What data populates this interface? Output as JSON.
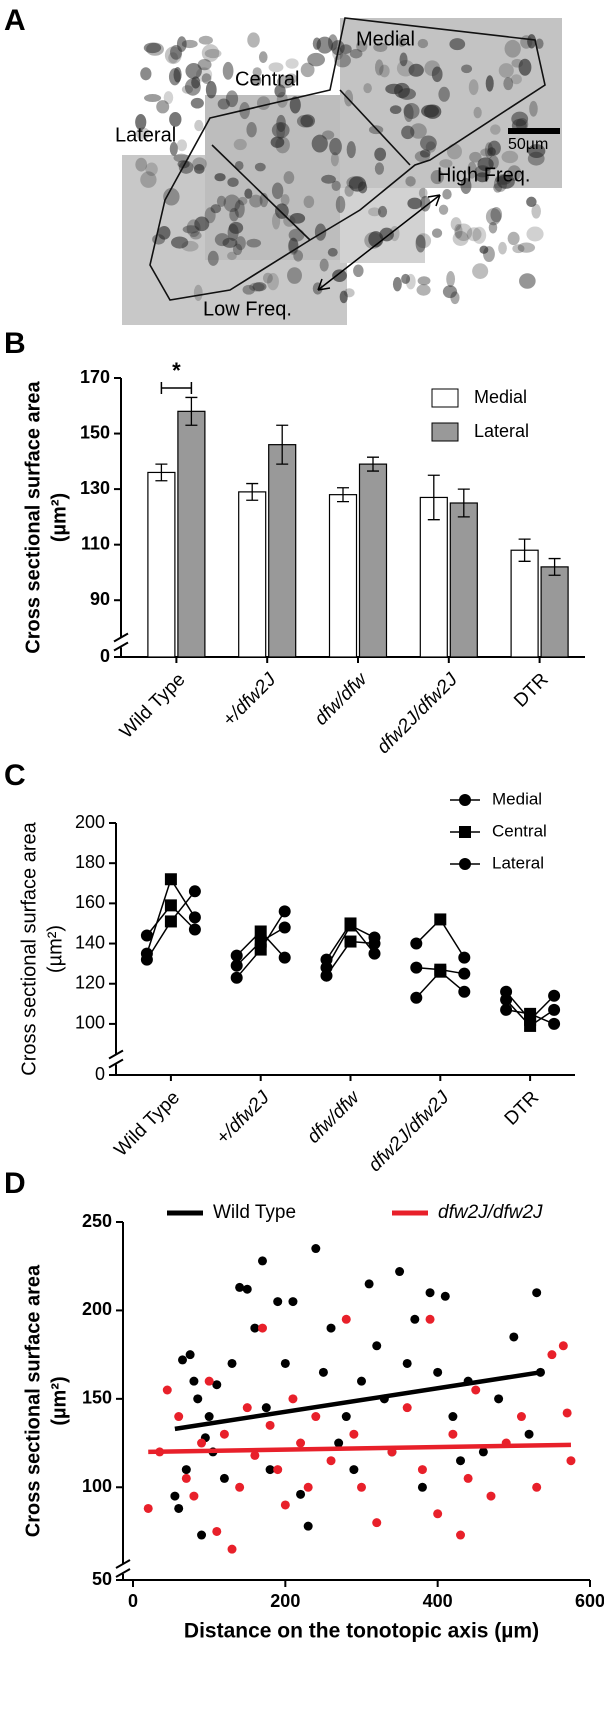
{
  "figure_a": {
    "label": "A",
    "regions": [
      "Medial",
      "Central",
      "Lateral"
    ],
    "scale_bar": "50µm",
    "arrow_labels": [
      "High Freq.",
      "Low Freq."
    ]
  },
  "chart_data": [
    {
      "type": "bar",
      "panel_label": "B",
      "ylabel": [
        "Cross sectional surface area",
        "(µm²)"
      ],
      "categories": [
        "Wild Type",
        "+/dfw2J",
        "dfw/dfw",
        "dfw2J/dfw2J",
        "DTR"
      ],
      "series": [
        {
          "name": "Medial",
          "color": "#ffffff",
          "values": [
            136,
            129,
            128,
            127,
            108
          ],
          "errors": [
            3,
            3,
            2.5,
            8,
            4
          ]
        },
        {
          "name": "Lateral",
          "color": "#999999",
          "values": [
            158,
            146,
            139,
            125,
            102
          ],
          "errors": [
            5,
            7,
            2.5,
            5,
            3
          ]
        }
      ],
      "ylim": [
        0,
        170
      ],
      "axis_break": [
        0,
        80
      ],
      "yticks": [
        0,
        90,
        110,
        130,
        150,
        170
      ],
      "annotations": [
        {
          "text": "*",
          "category": 0
        }
      ]
    },
    {
      "type": "paired",
      "panel_label": "C",
      "ylabel": [
        "Cross sectional surface area",
        "(µm²)"
      ],
      "categories": [
        "Wild Type",
        "+/dfw2J",
        "dfw/dfw",
        "dfw2J/dfw2J",
        "DTR"
      ],
      "series": [
        {
          "name": "Medial",
          "marker": "circle",
          "values": [
            [
              144,
              135,
              132
            ],
            [
              123,
              129,
              134
            ],
            [
              132,
              128,
              124
            ],
            [
              140,
              128,
              113
            ],
            [
              116,
              112,
              107
            ]
          ]
        },
        {
          "name": "Central",
          "marker": "square",
          "values": [
            [
              159,
              172,
              151
            ],
            [
              137,
              141,
              146
            ],
            [
              150,
              149,
              141
            ],
            [
              152,
              127,
              126
            ],
            [
              102,
              99,
              105
            ]
          ]
        },
        {
          "name": "Lateral",
          "marker": "circle",
          "values": [
            [
              147,
              153,
              166
            ],
            [
              156,
              148,
              133
            ],
            [
              135,
              143,
              140
            ],
            [
              133,
              125,
              116
            ],
            [
              114,
              107,
              100
            ]
          ]
        }
      ],
      "ylim": [
        0,
        200
      ],
      "axis_break": [
        0,
        90
      ],
      "yticks": [
        0,
        100,
        120,
        140,
        160,
        180,
        200
      ]
    },
    {
      "type": "scatter",
      "panel_label": "D",
      "ylabel": [
        "Cross sectional surface area",
        "(µm²)"
      ],
      "xlabel": "Distance on the tonotopic axis (µm)",
      "xlim": [
        0,
        600
      ],
      "xticks": [
        0,
        200,
        400,
        600
      ],
      "ylim": [
        50,
        250
      ],
      "axis_break": [
        50,
        60
      ],
      "yticks": [
        50,
        100,
        150,
        200,
        250
      ],
      "series": [
        {
          "name": "Wild Type",
          "color": "#000000",
          "x": [
            55,
            60,
            65,
            70,
            75,
            80,
            85,
            90,
            95,
            100,
            105,
            110,
            120,
            130,
            140,
            150,
            160,
            170,
            175,
            180,
            190,
            200,
            210,
            220,
            230,
            240,
            250,
            260,
            270,
            280,
            290,
            300,
            310,
            320,
            330,
            340,
            350,
            360,
            370,
            380,
            390,
            400,
            410,
            420,
            430,
            440,
            460,
            480,
            500,
            520,
            530,
            535
          ],
          "y": [
            95,
            88,
            172,
            110,
            175,
            160,
            150,
            73,
            128,
            140,
            120,
            158,
            105,
            170,
            213,
            212,
            190,
            228,
            145,
            110,
            205,
            170,
            205,
            96,
            78,
            235,
            165,
            190,
            125,
            140,
            110,
            160,
            215,
            180,
            150,
            120,
            222,
            170,
            195,
            100,
            210,
            165,
            208,
            140,
            115,
            160,
            120,
            150,
            185,
            130,
            210,
            165
          ],
          "trend": {
            "x": [
              55,
              535
            ],
            "y": [
              133,
              165
            ]
          }
        },
        {
          "name": "dfw2J/dfw2J",
          "color": "#e8202a",
          "x": [
            20,
            35,
            45,
            60,
            70,
            80,
            90,
            100,
            110,
            120,
            130,
            140,
            150,
            160,
            170,
            180,
            190,
            200,
            210,
            220,
            230,
            240,
            260,
            280,
            290,
            300,
            320,
            340,
            360,
            380,
            390,
            400,
            420,
            430,
            440,
            450,
            470,
            490,
            510,
            530,
            550,
            565,
            575,
            570
          ],
          "y": [
            88,
            120,
            155,
            140,
            105,
            95,
            125,
            160,
            75,
            130,
            65,
            100,
            145,
            118,
            190,
            135,
            110,
            90,
            150,
            125,
            100,
            140,
            115,
            195,
            130,
            100,
            80,
            120,
            145,
            110,
            195,
            85,
            130,
            73,
            105,
            155,
            95,
            125,
            140,
            100,
            175,
            180,
            115,
            142
          ],
          "trend": {
            "x": [
              20,
              575
            ],
            "y": [
              120,
              124
            ]
          }
        }
      ]
    }
  ]
}
